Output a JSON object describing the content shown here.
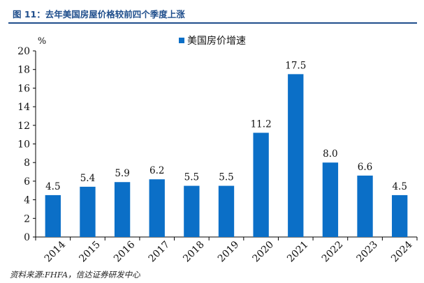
{
  "figure": {
    "title": "图 11：去年美国房屋价格较前四个季度上涨",
    "source": "资料来源:FHFA，信达证券研发中心"
  },
  "chart_data": {
    "type": "bar",
    "categories": [
      "2014",
      "2015",
      "2016",
      "2017",
      "2018",
      "2019",
      "2020",
      "2021",
      "2022",
      "2023",
      "2024"
    ],
    "series": [
      {
        "name": "美国房价增速",
        "values": [
          4.5,
          5.4,
          5.9,
          6.2,
          5.5,
          5.5,
          11.2,
          17.5,
          8.0,
          6.6,
          4.5
        ],
        "color": "#0b6fc7"
      }
    ],
    "data_labels": [
      "4.5",
      "5.4",
      "5.9",
      "6.2",
      "5.5",
      "5.5",
      "11.2",
      "17.5",
      "8.0",
      "6.6",
      "4.5"
    ],
    "ylim": [
      0,
      20
    ],
    "yticks": [
      0,
      2,
      4,
      6,
      8,
      10,
      12,
      14,
      16,
      18,
      20
    ],
    "yunit": "%",
    "xlabel": "",
    "ylabel": "",
    "grid": false,
    "legend_position": "top-center"
  }
}
